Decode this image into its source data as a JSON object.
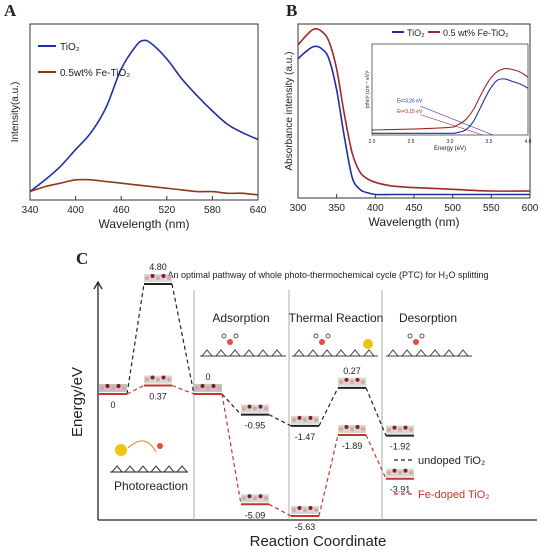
{
  "panels": {
    "a": "A",
    "b": "B",
    "c": "C"
  },
  "chart_data": [
    {
      "type": "line",
      "panel": "A",
      "xlabel": "Wavelength (nm)",
      "ylabel": "Intensity(a.u.)",
      "xlim": [
        340,
        640
      ],
      "xticks": [
        "340",
        "400",
        "460",
        "520",
        "580",
        "640"
      ],
      "legend": "top-left",
      "series": [
        {
          "name": "TiO₂",
          "color": "#1f2fa8",
          "x": [
            340,
            360,
            380,
            400,
            420,
            440,
            460,
            480,
            490,
            500,
            520,
            540,
            560,
            580,
            600,
            620,
            640
          ],
          "y": [
            0.05,
            0.12,
            0.2,
            0.3,
            0.4,
            0.55,
            0.78,
            0.92,
            0.95,
            0.93,
            0.84,
            0.72,
            0.62,
            0.53,
            0.45,
            0.4,
            0.36
          ]
        },
        {
          "name": "0.5wt% Fe-TiO₂",
          "color": "#8b3a1a",
          "x": [
            340,
            360,
            380,
            400,
            420,
            440,
            460,
            480,
            500,
            520,
            540,
            560,
            580,
            600,
            620,
            640
          ],
          "y": [
            0.05,
            0.08,
            0.1,
            0.12,
            0.12,
            0.11,
            0.1,
            0.09,
            0.08,
            0.07,
            0.06,
            0.05,
            0.05,
            0.04,
            0.04,
            0.03
          ]
        }
      ]
    },
    {
      "type": "line",
      "panel": "B",
      "xlabel": "Wavelength (nm)",
      "ylabel": "Absorbance intensity (a.u.)",
      "xlim": [
        300,
        600
      ],
      "xticks": [
        "300",
        "350",
        "400",
        "450",
        "500",
        "550",
        "600"
      ],
      "legend": "top-right",
      "series": [
        {
          "name": "TiO₂",
          "color": "#1f2fa8",
          "x": [
            300,
            310,
            320,
            330,
            340,
            350,
            360,
            370,
            380,
            390,
            400,
            420,
            450,
            500,
            550,
            600
          ],
          "y": [
            0.8,
            0.84,
            0.87,
            0.86,
            0.8,
            0.62,
            0.35,
            0.12,
            0.05,
            0.03,
            0.02,
            0.02,
            0.02,
            0.02,
            0.02,
            0.02
          ]
        },
        {
          "name": "0.5 wt% Fe-TiO₂",
          "color": "#a0282a",
          "x": [
            300,
            310,
            320,
            330,
            340,
            350,
            360,
            370,
            380,
            390,
            400,
            420,
            450,
            500,
            550,
            600
          ],
          "y": [
            0.88,
            0.93,
            0.97,
            0.96,
            0.9,
            0.74,
            0.48,
            0.26,
            0.15,
            0.11,
            0.09,
            0.07,
            0.06,
            0.05,
            0.04,
            0.04
          ]
        }
      ],
      "inset": {
        "xlabel": "Energy (eV)",
        "ylabel": "(αhν)² (cm⁻¹ eV)²",
        "xlim": [
          2.0,
          4.0
        ],
        "xticks": [
          "2.0",
          "2.5",
          "3.0",
          "3.5",
          "4.0"
        ],
        "annotations": [
          "Eᵍ=3.26 eV",
          "Eᵍ=3.15 eV"
        ],
        "series": [
          {
            "color": "#1f2fa8",
            "x": [
              2.0,
              2.5,
              3.0,
              3.1,
              3.2,
              3.3,
              3.4,
              3.5,
              3.6,
              3.7,
              3.8,
              3.9,
              4.0
            ],
            "y": [
              0.02,
              0.02,
              0.02,
              0.03,
              0.06,
              0.16,
              0.34,
              0.52,
              0.64,
              0.66,
              0.63,
              0.6,
              0.55
            ]
          },
          {
            "color": "#a0282a",
            "x": [
              2.0,
              2.5,
              3.0,
              3.1,
              3.2,
              3.3,
              3.4,
              3.5,
              3.6,
              3.7,
              3.8,
              3.9,
              4.0
            ],
            "y": [
              0.06,
              0.07,
              0.09,
              0.12,
              0.18,
              0.3,
              0.48,
              0.64,
              0.74,
              0.78,
              0.77,
              0.74,
              0.68
            ]
          }
        ]
      }
    },
    {
      "type": "line",
      "panel": "C",
      "title": "An optimal pathway of whole photo-thermochemical cycle (PTC) for H₂O splitting",
      "xlabel": "Reaction Coordinate",
      "ylabel": "Energy/eV",
      "stages": [
        "Adsorption",
        "Thermal Reaction",
        "Desorption"
      ],
      "photo_label": "Photoreaction",
      "series": [
        {
          "name": "undoped TiO₂",
          "color": "#222222",
          "levels": [
            0,
            4.8,
            0,
            -0.95,
            -1.47,
            0.27,
            -1.92
          ],
          "labels": [
            "",
            "4.80",
            "0",
            "-0.95",
            "-1.47",
            "0.27",
            "-1.92"
          ]
        },
        {
          "name": "Fe-doped TiO₂",
          "color": "#c0392b",
          "levels": [
            0,
            0.37,
            0,
            -5.09,
            -5.63,
            -1.89,
            -3.91
          ],
          "labels": [
            "0",
            "0.37",
            "",
            "-5.09",
            "-5.63",
            "-1.89",
            "-3.91"
          ]
        }
      ]
    }
  ]
}
